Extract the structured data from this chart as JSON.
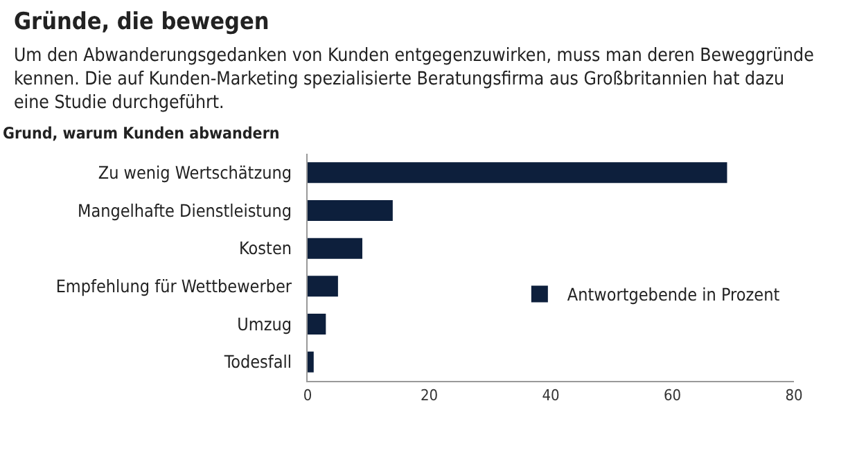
{
  "chart_data": {
    "type": "bar",
    "orientation": "horizontal",
    "title": "Gründe, die bewegen",
    "subtitle": "Um den Abwanderungsgedanken von Kunden entgegenzuwirken, muss man deren Beweggründe kennen. Die auf Kunden-Marketing spezialisierte Beratungsfirma aus Großbritannien hat dazu eine Studie durchgeführt.",
    "ylabel": "Grund, warum Kunden abwandern",
    "categories": [
      "Zu wenig Wertschätzung",
      "Mangelhafte Dienstleistung",
      "Kosten",
      "Empfehlung für Wettbewerber",
      "Umzug",
      "Todesfall"
    ],
    "series": [
      {
        "name": "Antwortgebende in Prozent",
        "color": "#0d1f3c",
        "values": [
          69,
          14,
          9,
          5,
          3,
          1
        ]
      }
    ],
    "xlim": [
      0,
      80
    ],
    "xticks": [
      0,
      20,
      40,
      60,
      80
    ],
    "grid": false,
    "legend": "right"
  }
}
